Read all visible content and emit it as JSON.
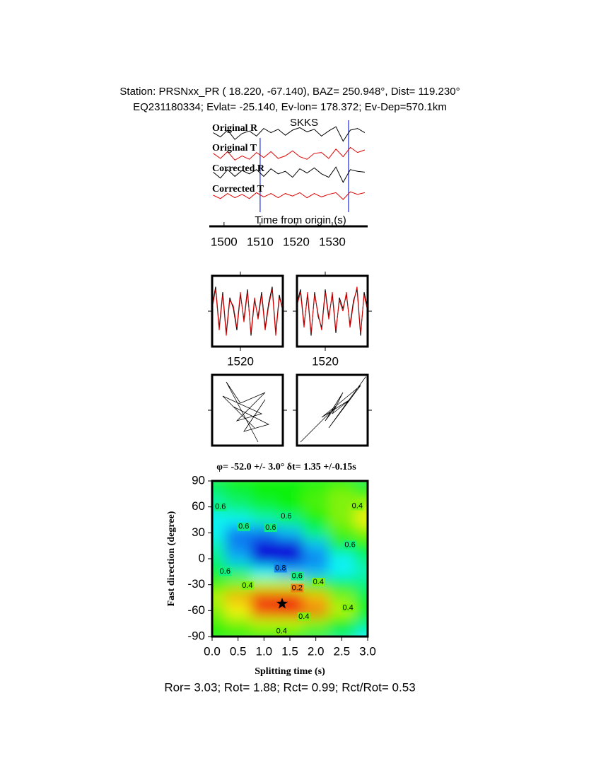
{
  "header": {
    "line1": "Station: PRSNxx_PR (  18.220,  -67.140), BAZ=  250.948°, Dist=  119.230°",
    "line2": "EQ231180334; Evlat= -25.140, Ev-lon= 178.372; Ev-Dep=570.1km"
  },
  "footer": "Ror= 3.03; Rot= 1.88; Rct= 0.99; Rct/Rot= 0.53",
  "chart_data": [
    {
      "type": "waveforms",
      "xlabel": "Time from origin (s)",
      "phase": "SKKS",
      "phase_color": "#e00000",
      "xlim": [
        1496.7,
        1539.8
      ],
      "xticks": [
        1500,
        1510,
        1520,
        1530
      ],
      "ylim": [
        -1,
        1
      ],
      "picks": [
        1510,
        1534.5
      ],
      "pick_color": "#1f2fd0",
      "x": [
        1497,
        1499,
        1501,
        1503,
        1505,
        1507,
        1509,
        1511,
        1513,
        1515,
        1517,
        1519,
        1521,
        1523,
        1525,
        1527,
        1529,
        1531,
        1533,
        1535,
        1537,
        1539
      ],
      "series": [
        {
          "name": "Original R",
          "color": "#000000",
          "values": [
            0.2,
            -0.3,
            0.5,
            -0.6,
            0.1,
            0.4,
            -0.2,
            0.7,
            0.2,
            0.6,
            -0.1,
            0.5,
            0.8,
            0.3,
            0.6,
            -0.2,
            0.4,
            0.9,
            -0.8,
            0.5,
            0.7,
            0.2
          ]
        },
        {
          "name": "Original T",
          "color": "#e00000",
          "values": [
            0.1,
            -0.5,
            0.3,
            -0.7,
            -0.2,
            -0.6,
            0.2,
            -0.4,
            0.3,
            -0.5,
            -0.2,
            0.4,
            -0.3,
            -0.6,
            0.1,
            0.2,
            -0.5,
            0.6,
            -0.3,
            0.8,
            0.2,
            0.5
          ]
        },
        {
          "name": "Corrected R",
          "color": "#000000",
          "values": [
            0.3,
            -0.4,
            0.6,
            -0.2,
            0.5,
            0.1,
            0.6,
            -0.2,
            0.7,
            0.1,
            0.4,
            -0.3,
            0.7,
            0.2,
            0.8,
            0.1,
            -0.3,
            0.9,
            -0.9,
            0.6,
            0.4,
            0.3
          ]
        },
        {
          "name": "Corrected T",
          "color": "#e00000",
          "values": [
            0.0,
            -0.4,
            0.2,
            -0.3,
            0.1,
            -0.4,
            0.3,
            -0.2,
            0.2,
            -0.3,
            0.2,
            -0.1,
            0.3,
            -0.3,
            0.2,
            -0.2,
            0.1,
            0.3,
            -0.5,
            0.4,
            0.1,
            0.3
          ]
        }
      ]
    },
    {
      "type": "line",
      "xlim": [
        1512,
        1532
      ],
      "xticks": [
        1520
      ],
      "ylim": [
        -1.3,
        1.3
      ],
      "x": [
        1512,
        1513,
        1514,
        1515,
        1516,
        1517,
        1518,
        1519,
        1520,
        1521,
        1522,
        1523,
        1524,
        1525,
        1526,
        1527,
        1528,
        1529,
        1530,
        1531,
        1532
      ],
      "series": [
        {
          "color": "#000000",
          "values": [
            0.2,
            0.9,
            -0.6,
            0.7,
            -0.8,
            0.5,
            0.1,
            -0.7,
            0.6,
            -0.3,
            0.8,
            -0.9,
            0.4,
            -0.2,
            0.7,
            -0.6,
            0.3,
            0.9,
            -0.8,
            0.6,
            0.0
          ]
        },
        {
          "color": "#e00000",
          "values": [
            0.1,
            0.8,
            -0.7,
            0.6,
            -0.9,
            0.4,
            0.2,
            -0.6,
            0.7,
            -0.4,
            0.7,
            -0.8,
            0.5,
            -0.3,
            0.6,
            -0.7,
            0.2,
            0.8,
            -0.9,
            0.5,
            0.1
          ]
        }
      ]
    },
    {
      "type": "line",
      "xlim": [
        1512,
        1532
      ],
      "xticks": [
        1520
      ],
      "ylim": [
        -1.3,
        1.3
      ],
      "x": [
        1512,
        1513,
        1514,
        1515,
        1516,
        1517,
        1518,
        1519,
        1520,
        1521,
        1522,
        1523,
        1524,
        1525,
        1526,
        1527,
        1528,
        1529,
        1530,
        1531,
        1532
      ],
      "series": [
        {
          "color": "#000000",
          "values": [
            0.3,
            0.8,
            -0.5,
            0.6,
            -0.9,
            0.7,
            -0.2,
            -0.6,
            0.8,
            -0.2,
            0.6,
            -0.8,
            0.5,
            0.1,
            0.6,
            -0.5,
            0.4,
            0.8,
            -0.9,
            0.7,
            0.1
          ]
        },
        {
          "color": "#e00000",
          "values": [
            0.2,
            0.7,
            -0.6,
            0.7,
            -0.8,
            0.6,
            -0.1,
            -0.7,
            0.7,
            -0.3,
            0.7,
            -0.7,
            0.4,
            0.0,
            0.7,
            -0.6,
            0.3,
            0.9,
            -0.8,
            0.6,
            0.0
          ]
        }
      ]
    },
    {
      "type": "particle",
      "xlim": [
        -1,
        1
      ],
      "ylim": [
        -1,
        1
      ],
      "x": [
        0.3,
        -0.6,
        -0.2,
        0.5,
        -0.3,
        0.4,
        -0.7,
        0.2,
        -0.4,
        0.6,
        -0.1,
        0.5
      ],
      "values": [
        -0.9,
        0.8,
        0.2,
        0.5,
        -0.3,
        -0.1,
        0.4,
        -0.5,
        0.1,
        -0.4,
        -0.6,
        0.3
      ],
      "color": "#000000"
    },
    {
      "type": "particle",
      "xlim": [
        -1,
        1
      ],
      "ylim": [
        -1,
        1
      ],
      "x": [
        -0.9,
        -0.4,
        0.1,
        -0.2,
        0.3,
        0.0,
        0.5,
        -0.3,
        0.2,
        0.8,
        -0.1,
        0.95
      ],
      "values": [
        -0.9,
        -0.4,
        0.1,
        -0.3,
        0.5,
        -0.1,
        0.3,
        -0.2,
        0.2,
        0.7,
        -0.5,
        0.95
      ],
      "color": "#000000"
    },
    {
      "type": "heatmap",
      "title": "φ= -52.0 +/- 3.0° δt= 1.35 +/-0.15s",
      "xlabel": "Splitting time (s)",
      "ylabel": "Fast direction (degree)",
      "xlim": [
        0,
        3
      ],
      "ylim": [
        -90,
        90
      ],
      "xticks": [
        {
          "value": 0,
          "label": "0.0"
        },
        0.5,
        {
          "value": 1,
          "label": "1.0"
        },
        1.5,
        {
          "value": 2,
          "label": "2.0"
        },
        2.5,
        {
          "value": 3,
          "label": "3.0"
        }
      ],
      "yticks": [
        -90,
        -60,
        -30,
        0,
        30,
        60,
        90
      ],
      "x": [
        0,
        0.5,
        1,
        1.5,
        2,
        2.5,
        3
      ],
      "y": [
        90,
        75,
        60,
        45,
        30,
        15,
        0,
        -15,
        -30,
        -45,
        -60,
        -75,
        -90
      ],
      "z": [
        [
          0.55,
          0.5,
          0.5,
          0.5,
          0.5,
          0.5,
          0.55
        ],
        [
          0.6,
          0.55,
          0.5,
          0.5,
          0.45,
          0.4,
          0.45
        ],
        [
          0.65,
          0.6,
          0.55,
          0.5,
          0.45,
          0.4,
          0.35
        ],
        [
          0.7,
          0.7,
          0.65,
          0.6,
          0.5,
          0.4,
          0.3
        ],
        [
          0.7,
          0.8,
          0.8,
          0.75,
          0.6,
          0.45,
          0.4
        ],
        [
          0.65,
          0.8,
          0.92,
          0.9,
          0.75,
          0.55,
          0.5
        ],
        [
          0.6,
          0.75,
          0.9,
          0.9,
          0.8,
          0.7,
          0.6
        ],
        [
          0.55,
          0.6,
          0.7,
          0.75,
          0.75,
          0.7,
          0.65
        ],
        [
          0.45,
          0.4,
          0.35,
          0.35,
          0.45,
          0.55,
          0.6
        ],
        [
          0.35,
          0.25,
          0.15,
          0.15,
          0.25,
          0.4,
          0.55
        ],
        [
          0.4,
          0.3,
          0.15,
          0.12,
          0.2,
          0.35,
          0.5
        ],
        [
          0.45,
          0.4,
          0.35,
          0.35,
          0.4,
          0.5,
          0.6
        ],
        [
          0.5,
          0.5,
          0.5,
          0.5,
          0.55,
          0.6,
          0.7
        ]
      ],
      "contour_labels": [
        {
          "value": 0.6,
          "x": 0.16,
          "y": 60
        },
        {
          "value": 0.6,
          "x": 0.61,
          "y": 37
        },
        {
          "value": 0.6,
          "x": 1.13,
          "y": 36
        },
        {
          "value": 0.6,
          "x": 1.43,
          "y": 49
        },
        {
          "value": 0.4,
          "x": 2.8,
          "y": 61
        },
        {
          "value": 0.6,
          "x": 2.66,
          "y": 16
        },
        {
          "value": 0.6,
          "x": 0.25,
          "y": -15
        },
        {
          "value": 0.4,
          "x": 0.68,
          "y": -31
        },
        {
          "value": 0.8,
          "x": 1.32,
          "y": -11
        },
        {
          "value": 0.6,
          "x": 1.64,
          "y": -20
        },
        {
          "value": 0.2,
          "x": 1.64,
          "y": -34
        },
        {
          "value": 0.4,
          "x": 2.05,
          "y": -27
        },
        {
          "value": 0.4,
          "x": 1.77,
          "y": -67
        },
        {
          "value": 0.4,
          "x": 2.62,
          "y": -57
        },
        {
          "value": 0.4,
          "x": 1.34,
          "y": -84
        }
      ],
      "best": {
        "x": 1.35,
        "y": -52
      }
    }
  ]
}
